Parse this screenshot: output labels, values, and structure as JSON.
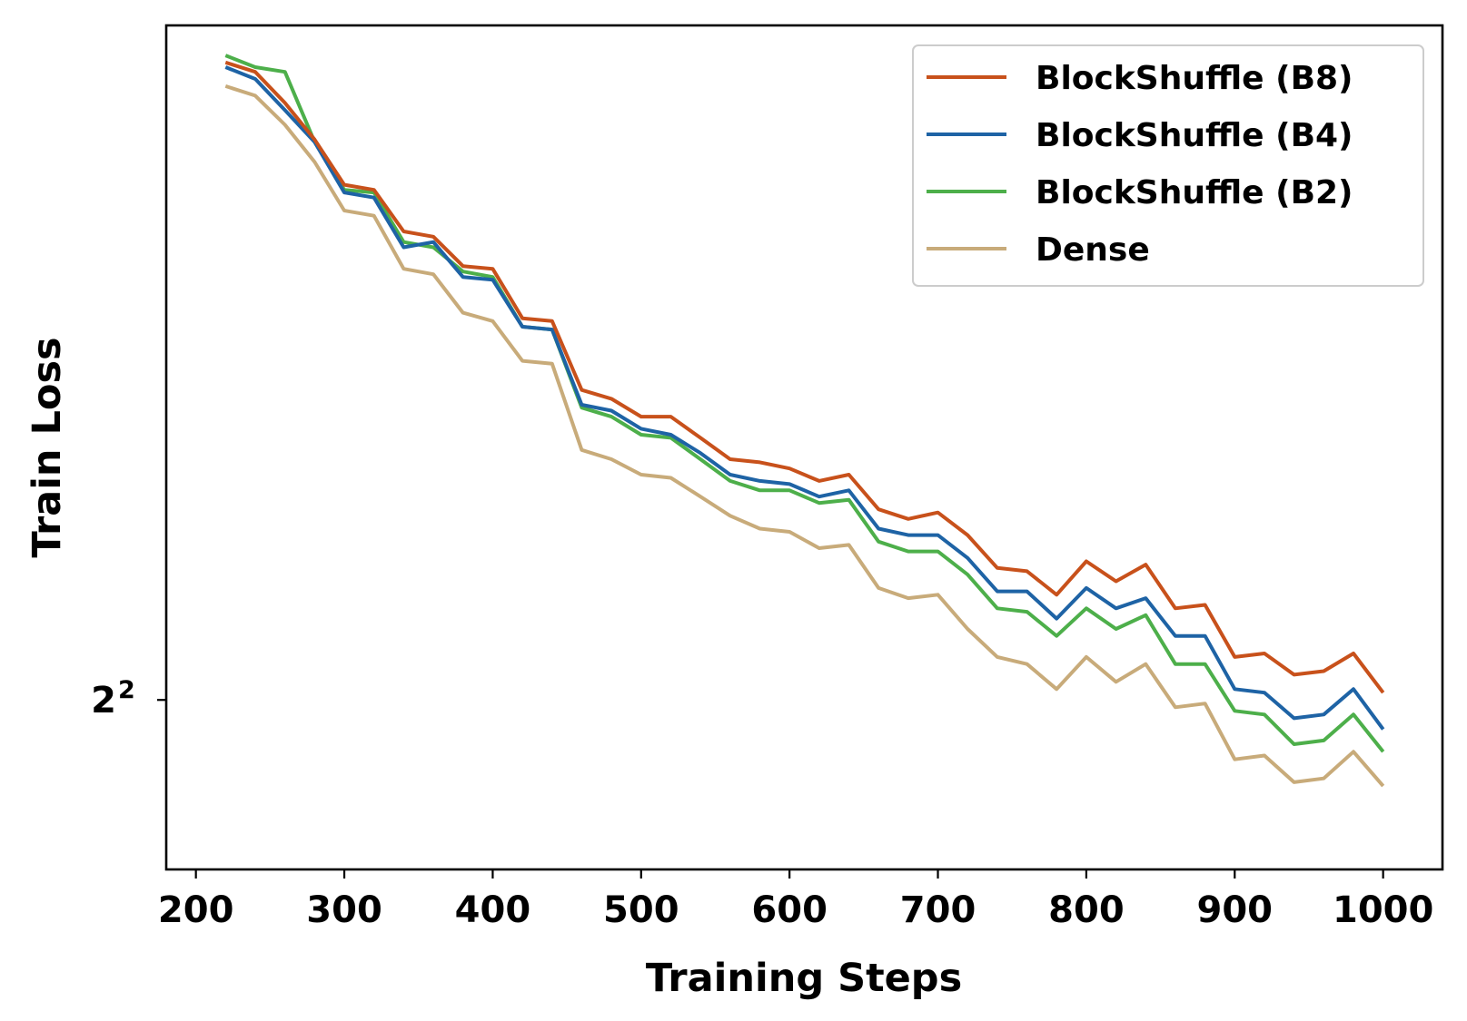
{
  "chart_data": {
    "type": "line",
    "title": "",
    "xlabel": "Training Steps",
    "ylabel": "Train Loss",
    "yscale": "log2",
    "xlim": [
      180,
      1040
    ],
    "ylim": [
      3.56,
      6.36
    ],
    "x_ticks": [
      200,
      300,
      400,
      500,
      600,
      700,
      800,
      900,
      1000
    ],
    "x_tick_labels": [
      "200",
      "300",
      "400",
      "500",
      "600",
      "700",
      "800",
      "900",
      "1000"
    ],
    "y_ticks": [
      4
    ],
    "y_tick_labels": [
      {
        "base": "2",
        "exp": "2"
      }
    ],
    "grid": false,
    "legend_position": "top-right",
    "x": [
      220,
      240,
      260,
      280,
      300,
      320,
      340,
      360,
      380,
      400,
      420,
      440,
      460,
      480,
      500,
      520,
      540,
      560,
      580,
      600,
      620,
      640,
      660,
      680,
      700,
      720,
      740,
      760,
      780,
      800,
      820,
      840,
      860,
      880,
      900,
      920,
      940,
      960,
      980,
      1000
    ],
    "series": [
      {
        "name": "BlockShuffle (B8)",
        "color": "#c8511b",
        "values": [
          6.2,
          6.16,
          6.03,
          5.88,
          5.7,
          5.68,
          5.52,
          5.5,
          5.39,
          5.38,
          5.2,
          5.19,
          4.95,
          4.92,
          4.86,
          4.86,
          4.79,
          4.72,
          4.71,
          4.69,
          4.65,
          4.67,
          4.56,
          4.53,
          4.55,
          4.48,
          4.38,
          4.37,
          4.3,
          4.4,
          4.34,
          4.39,
          4.26,
          4.27,
          4.12,
          4.13,
          4.07,
          4.08,
          4.13,
          4.02
        ]
      },
      {
        "name": "BlockShuffle (B4)",
        "color": "#1e63a5",
        "values": [
          6.18,
          6.13,
          6.0,
          5.87,
          5.67,
          5.65,
          5.46,
          5.48,
          5.35,
          5.34,
          5.17,
          5.16,
          4.9,
          4.88,
          4.82,
          4.8,
          4.74,
          4.67,
          4.65,
          4.64,
          4.6,
          4.62,
          4.5,
          4.48,
          4.48,
          4.41,
          4.31,
          4.31,
          4.23,
          4.32,
          4.26,
          4.29,
          4.18,
          4.18,
          4.03,
          4.02,
          3.95,
          3.96,
          4.03,
          3.92
        ]
      },
      {
        "name": "BlockShuffle (B2)",
        "color": "#4daf4a",
        "values": [
          6.23,
          6.18,
          6.16,
          5.87,
          5.68,
          5.67,
          5.48,
          5.46,
          5.37,
          5.35,
          5.17,
          5.16,
          4.89,
          4.86,
          4.8,
          4.79,
          4.72,
          4.65,
          4.62,
          4.62,
          4.58,
          4.59,
          4.46,
          4.43,
          4.43,
          4.36,
          4.26,
          4.25,
          4.18,
          4.26,
          4.2,
          4.24,
          4.1,
          4.1,
          3.97,
          3.96,
          3.88,
          3.89,
          3.96,
          3.86
        ]
      },
      {
        "name": "Dense",
        "color": "#c8ab7a",
        "values": [
          6.1,
          6.06,
          5.94,
          5.79,
          5.6,
          5.58,
          5.38,
          5.36,
          5.22,
          5.19,
          5.05,
          5.04,
          4.75,
          4.72,
          4.67,
          4.66,
          4.6,
          4.54,
          4.5,
          4.49,
          4.44,
          4.45,
          4.32,
          4.29,
          4.3,
          4.2,
          4.12,
          4.1,
          4.03,
          4.12,
          4.05,
          4.1,
          3.98,
          3.99,
          3.84,
          3.85,
          3.78,
          3.79,
          3.86,
          3.77
        ]
      }
    ]
  }
}
